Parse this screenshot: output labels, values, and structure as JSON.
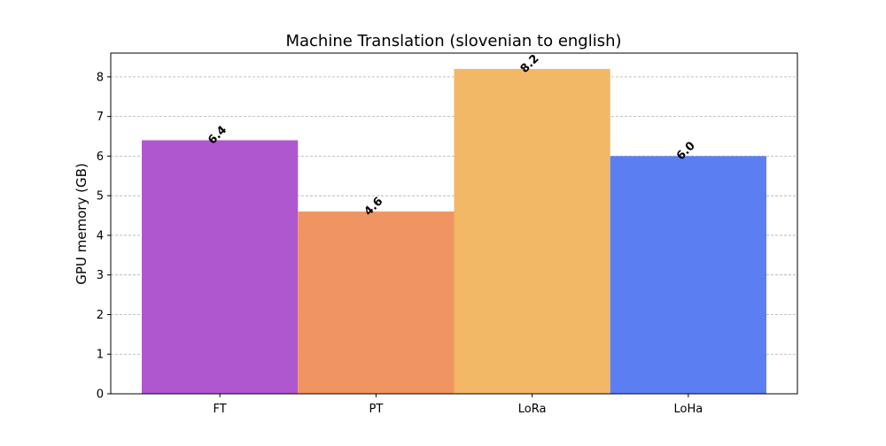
{
  "chart_data": {
    "type": "bar",
    "title": "Machine Translation (slovenian to english)",
    "xlabel": "",
    "ylabel": "GPU memory (GB)",
    "categories": [
      "FT",
      "PT",
      "LoRa",
      "LoHa"
    ],
    "values": [
      6.4,
      4.6,
      8.2,
      6.0
    ],
    "value_labels": [
      "6.4",
      "4.6",
      "8.2",
      "6.0"
    ],
    "colors": [
      "#af57cf",
      "#f09561",
      "#f2b865",
      "#5b7ff2"
    ],
    "ylim": [
      0,
      8.6
    ],
    "yticks": [
      "0",
      "1",
      "2",
      "3",
      "4",
      "5",
      "6",
      "7",
      "8"
    ],
    "grid": "y-dashed",
    "legend": "none"
  }
}
